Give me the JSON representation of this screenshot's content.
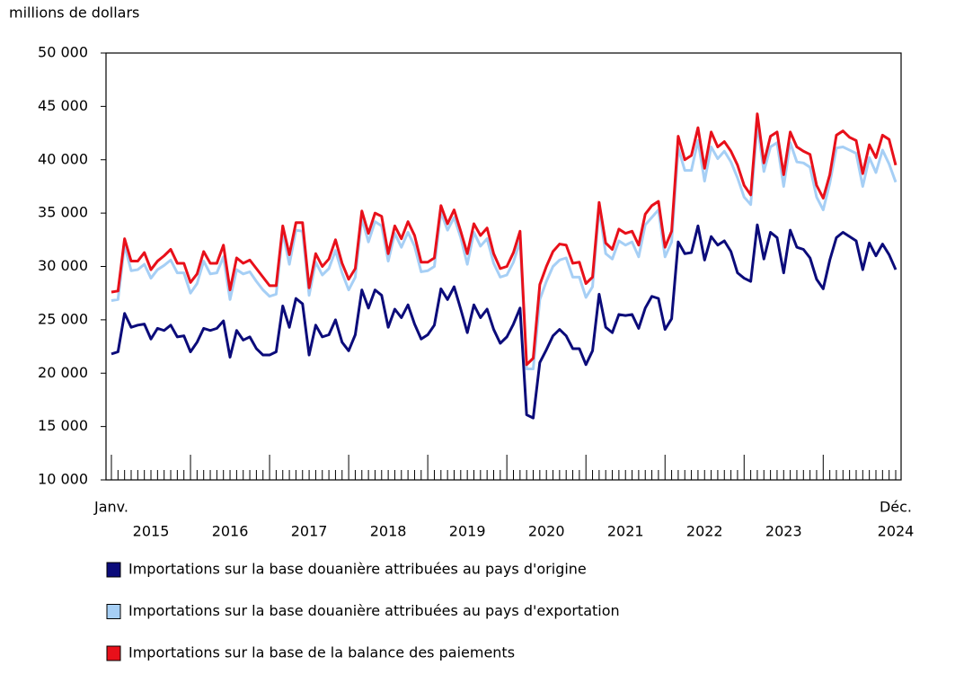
{
  "chart_data": {
    "type": "line",
    "y_label": "millions de dollars",
    "categories": [
      "Janv.",
      null,
      null,
      null,
      null,
      null,
      null,
      null,
      null,
      null,
      null,
      null,
      null,
      null,
      null,
      null,
      null,
      null,
      null,
      null,
      null,
      null,
      null,
      null,
      null,
      null,
      null,
      null,
      null,
      null,
      null,
      null,
      null,
      null,
      null,
      null,
      null,
      null,
      null,
      null,
      null,
      null,
      null,
      null,
      null,
      null,
      null,
      null,
      null,
      null,
      null,
      null,
      null,
      null,
      null,
      null,
      null,
      null,
      null,
      null,
      null,
      null,
      null,
      null,
      null,
      null,
      null,
      null,
      null,
      null,
      null,
      null,
      null,
      null,
      null,
      null,
      null,
      null,
      null,
      null,
      null,
      null,
      null,
      null,
      null,
      null,
      null,
      null,
      null,
      null,
      null,
      null,
      null,
      null,
      null,
      null,
      null,
      null,
      null,
      null,
      null,
      null,
      null,
      null,
      null,
      null,
      null,
      null,
      null,
      null,
      null,
      null,
      null,
      null,
      null,
      null,
      null,
      null,
      null,
      "Déc."
    ],
    "year_labels": [
      "2015",
      "2016",
      "2017",
      "2018",
      "2019",
      "2020",
      "2021",
      "2022",
      "2023",
      "2024"
    ],
    "ylim": [
      10000,
      50000
    ],
    "yticks": [
      {
        "value": 10000,
        "label": "10 000"
      },
      {
        "value": 15000,
        "label": "15 000"
      },
      {
        "value": 20000,
        "label": "20 000"
      },
      {
        "value": 25000,
        "label": "25 000"
      },
      {
        "value": 30000,
        "label": "30 000"
      },
      {
        "value": 35000,
        "label": "35 000"
      },
      {
        "value": 40000,
        "label": "40 000"
      },
      {
        "value": 45000,
        "label": "45 000"
      },
      {
        "value": 50000,
        "label": "50 000"
      }
    ],
    "series": [
      {
        "name": "Importations sur la base douanière attribuées au pays d'origine",
        "color": "#0b0b7a",
        "values": [
          21800,
          22000,
          25600,
          24300,
          24500,
          24600,
          23200,
          24200,
          24000,
          24500,
          23400,
          23500,
          22000,
          22900,
          24200,
          24000,
          24200,
          24900,
          21500,
          24000,
          23100,
          23400,
          22300,
          21700,
          21700,
          22000,
          26300,
          24300,
          27000,
          26500,
          21700,
          24500,
          23400,
          23600,
          25000,
          22900,
          22100,
          23600,
          27800,
          26100,
          27800,
          27300,
          24300,
          26000,
          25200,
          26400,
          24600,
          23200,
          23600,
          24500,
          27900,
          26900,
          28100,
          26000,
          23800,
          26400,
          25200,
          26000,
          24100,
          22800,
          23400,
          24600,
          26100,
          16100,
          15800,
          21000,
          22200,
          23500,
          24100,
          23500,
          22300,
          22300,
          20800,
          22100,
          27400,
          24300,
          23800,
          25500,
          25400,
          25500,
          24200,
          26100,
          27200,
          27000,
          24100,
          25100,
          32300,
          31200,
          31300,
          33800,
          30600,
          32800,
          32000,
          32400,
          31400,
          29400,
          28900,
          28600,
          33900,
          30700,
          33200,
          32700,
          29400,
          33400,
          31800,
          31600,
          30800,
          28800,
          27900,
          30600,
          32700,
          33200,
          32800,
          32400,
          29700,
          32200,
          31000,
          32100,
          31100,
          29700
        ]
      },
      {
        "name": "Importations sur la base douanière attribuées au pays d'exportation",
        "color": "#a6cff5",
        "values": [
          26800,
          26900,
          32000,
          29600,
          29700,
          30200,
          28900,
          29700,
          30100,
          30600,
          29400,
          29400,
          27500,
          28400,
          30500,
          29300,
          29400,
          30900,
          26900,
          29700,
          29300,
          29500,
          28600,
          27800,
          27200,
          27400,
          33200,
          30200,
          33400,
          33300,
          27300,
          30400,
          29200,
          29800,
          31500,
          29400,
          27800,
          29000,
          34500,
          32300,
          34200,
          33800,
          30500,
          33100,
          31800,
          33200,
          31900,
          29500,
          29600,
          30000,
          35100,
          33400,
          34600,
          32700,
          30200,
          33200,
          31900,
          32600,
          30300,
          29000,
          29200,
          30400,
          32400,
          20400,
          20400,
          26900,
          28600,
          30000,
          30600,
          30800,
          29000,
          29000,
          27100,
          28100,
          35500,
          31200,
          30700,
          32400,
          32000,
          32300,
          30900,
          33900,
          34600,
          35300,
          30900,
          32300,
          41100,
          39000,
          39000,
          41800,
          38000,
          41200,
          40100,
          40800,
          39800,
          38300,
          36500,
          35800,
          43300,
          38900,
          41200,
          41600,
          37500,
          41600,
          39800,
          39700,
          39300,
          36500,
          35300,
          37800,
          41100,
          41200,
          40900,
          40600,
          37500,
          40200,
          38800,
          40900,
          39600,
          37900
        ]
      },
      {
        "name": "Importations sur la base de la balance des paiements",
        "color": "#e8101a",
        "values": [
          27600,
          27700,
          32600,
          30500,
          30500,
          31300,
          29700,
          30500,
          31000,
          31600,
          30300,
          30300,
          28500,
          29300,
          31400,
          30300,
          30300,
          32000,
          27800,
          30800,
          30300,
          30600,
          29800,
          29000,
          28200,
          28200,
          33800,
          31100,
          34100,
          34100,
          28000,
          31200,
          30000,
          30700,
          32500,
          30300,
          28800,
          29800,
          35200,
          33100,
          35000,
          34700,
          31200,
          33800,
          32600,
          34200,
          32900,
          30400,
          30400,
          30800,
          35700,
          34000,
          35300,
          33300,
          31200,
          34000,
          32900,
          33600,
          31200,
          29800,
          30000,
          31300,
          33300,
          20800,
          21400,
          28300,
          30000,
          31400,
          32100,
          32000,
          30300,
          30400,
          28400,
          29000,
          36000,
          32200,
          31600,
          33500,
          33100,
          33300,
          32000,
          34900,
          35700,
          36100,
          31800,
          33300,
          42200,
          40000,
          40400,
          43000,
          39200,
          42600,
          41200,
          41700,
          40800,
          39500,
          37600,
          36700,
          44300,
          39700,
          42200,
          42600,
          38600,
          42600,
          41200,
          40800,
          40500,
          37600,
          36400,
          38600,
          42300,
          42700,
          42100,
          41800,
          38700,
          41400,
          40200,
          42300,
          41900,
          39500
        ]
      }
    ]
  }
}
